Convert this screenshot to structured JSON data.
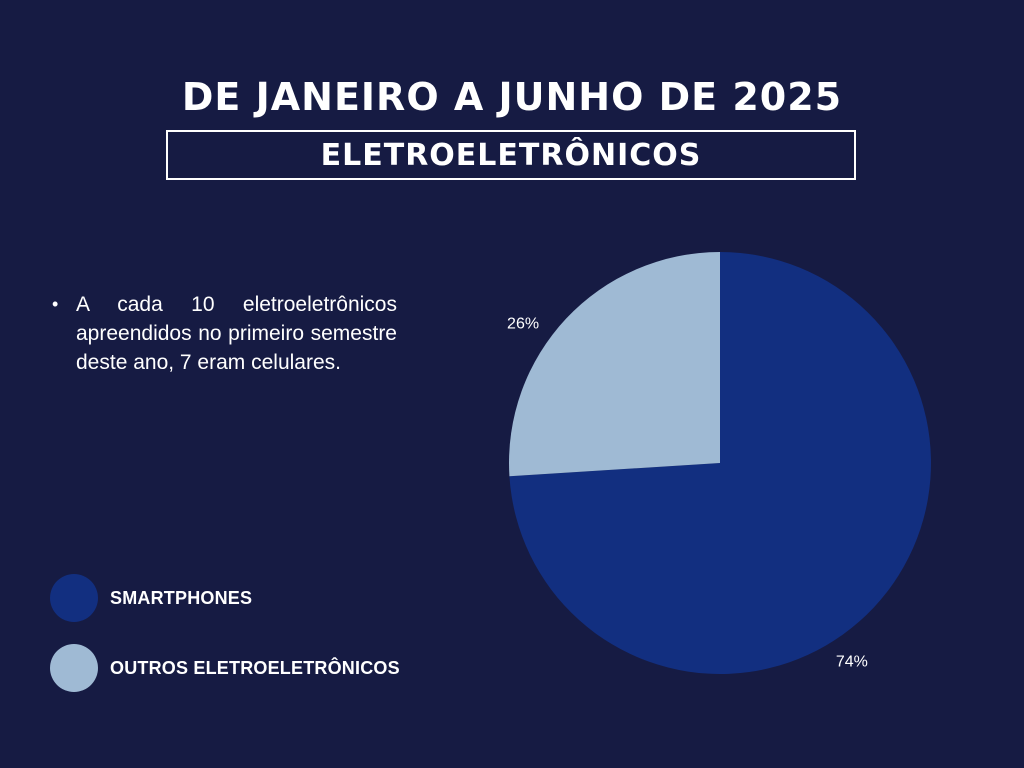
{
  "header": {
    "title": "DE JANEIRO A JUNHO DE 2025",
    "subtitle": "ELETROELETRÔNICOS"
  },
  "note": {
    "bullet": "•",
    "text": "A cada 10 eletroeletrônicos apreendidos no primeiro semestre deste ano, 7 eram celulares."
  },
  "legend": [
    {
      "label": "SMARTPHONES",
      "color": "#122f80"
    },
    {
      "label": "OUTROS ELETROELETRÔNICOS",
      "color": "#9fbad4"
    }
  ],
  "colors": {
    "background": "#161b43",
    "text": "#ffffff"
  },
  "chart_data": {
    "type": "pie",
    "slices": [
      {
        "label": "SMARTPHONES",
        "value": 74,
        "display": "74%",
        "color": "#122f80"
      },
      {
        "label": "OUTROS ELETROELETRÔNICOS",
        "value": 26,
        "display": "26%",
        "color": "#9fbad4"
      }
    ],
    "start_angle_deg": 0,
    "direction": "clockwise",
    "legend_position": "left"
  }
}
